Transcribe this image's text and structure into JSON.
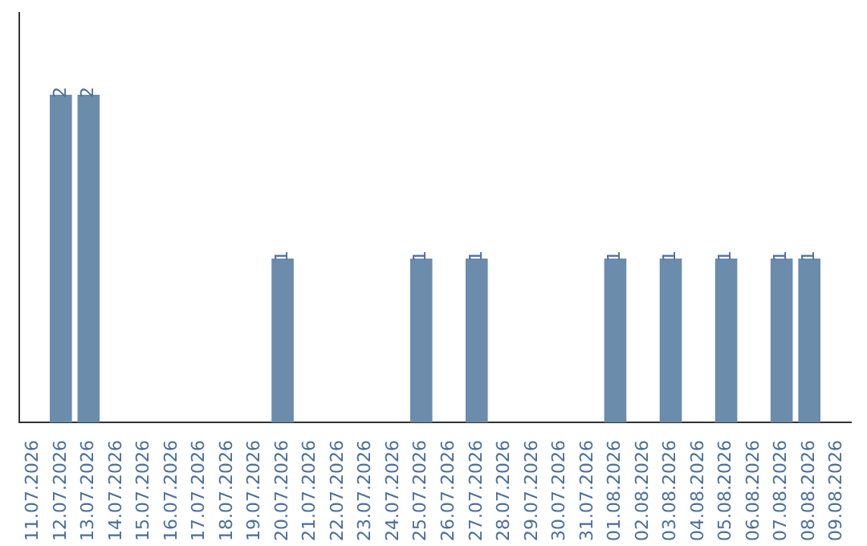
{
  "chart_data": {
    "type": "bar",
    "categories": [
      "11.07.2026",
      "12.07.2026",
      "13.07.2026",
      "14.07.2026",
      "15.07.2026",
      "16.07.2026",
      "17.07.2026",
      "18.07.2026",
      "19.07.2026",
      "20.07.2026",
      "21.07.2026",
      "22.07.2026",
      "23.07.2026",
      "24.07.2026",
      "25.07.2026",
      "26.07.2026",
      "27.07.2026",
      "28.07.2026",
      "29.07.2026",
      "30.07.2026",
      "31.07.2026",
      "01.08.2026",
      "02.08.2026",
      "03.08.2026",
      "04.08.2026",
      "05.08.2026",
      "06.08.2026",
      "07.08.2026",
      "08.08.2026",
      "09.08.2026"
    ],
    "values": [
      0,
      2,
      2,
      0,
      0,
      0,
      0,
      0,
      0,
      1,
      0,
      0,
      0,
      0,
      1,
      0,
      1,
      0,
      0,
      0,
      0,
      1,
      0,
      1,
      0,
      1,
      0,
      1,
      1,
      0
    ],
    "value_labels": [
      null,
      "2",
      "2",
      null,
      null,
      null,
      null,
      null,
      null,
      "1",
      null,
      null,
      null,
      null,
      "1",
      null,
      "1",
      null,
      null,
      null,
      null,
      "1",
      null,
      "1",
      null,
      "1",
      null,
      "1",
      "1",
      null
    ],
    "color": "#6b8cab",
    "grid": false,
    "legend": false,
    "tick_labels": "x"
  }
}
